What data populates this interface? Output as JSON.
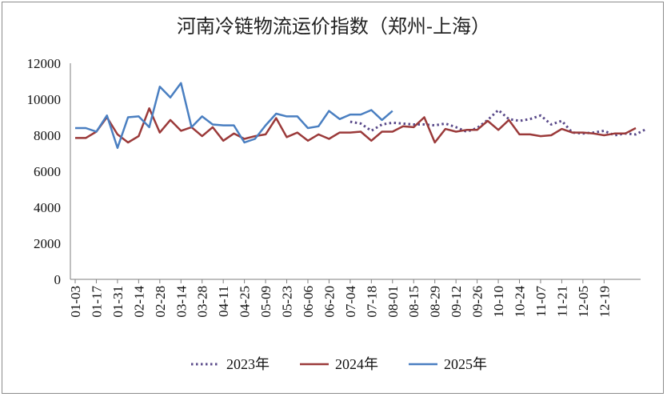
{
  "chart_data": {
    "type": "line",
    "title": "河南冷链物流运价指数（郑州-上海）",
    "xlabel": "",
    "ylabel": "",
    "ylim": [
      0,
      12000
    ],
    "yticks": [
      0,
      2000,
      4000,
      6000,
      8000,
      10000,
      12000
    ],
    "grid": false,
    "legend_position": "bottom",
    "xtick_labels": [
      "01-03",
      "01-17",
      "01-31",
      "02-14",
      "02-28",
      "03-14",
      "03-28",
      "04-11",
      "04-25",
      "05-09",
      "05-23",
      "06-06",
      "06-20",
      "07-04",
      "07-18",
      "08-01",
      "08-15",
      "08-29",
      "09-12",
      "09-26",
      "10-10",
      "10-24",
      "11-07",
      "11-21",
      "12-05",
      "12-19"
    ],
    "series": [
      {
        "name": "2023年",
        "color": "#5a4a8a",
        "style": "dotted",
        "x_start": 26,
        "values": [
          8750,
          8650,
          8250,
          8600,
          8700,
          8650,
          8600,
          8600,
          8550,
          8650,
          8450,
          8200,
          8400,
          8850,
          9400,
          8900,
          8800,
          8900,
          9100,
          8600,
          8800,
          8150,
          8100,
          8150,
          8250,
          8000,
          8100,
          8050,
          8350
        ]
      },
      {
        "name": "2024年",
        "color": "#9b3a3a",
        "style": "solid",
        "x_start": 0,
        "values": [
          7850,
          7850,
          8200,
          9000,
          8050,
          7600,
          7950,
          9500,
          8150,
          8850,
          8250,
          8450,
          7950,
          8450,
          7700,
          8100,
          7800,
          7950,
          8050,
          8950,
          7900,
          8150,
          7700,
          8050,
          7800,
          8150,
          8150,
          8200,
          7700,
          8200,
          8200,
          8500,
          8450,
          9000,
          7600,
          8350,
          8200,
          8300,
          8300,
          8800,
          8300,
          8850,
          8050,
          8050,
          7950,
          8000,
          8350,
          8150,
          8150,
          8100,
          8000,
          8100,
          8100,
          8400
        ]
      },
      {
        "name": "2025年",
        "color": "#4a7fc1",
        "style": "solid",
        "x_start": 0,
        "values": [
          8400,
          8400,
          8200,
          9100,
          7300,
          9000,
          9050,
          8450,
          10700,
          10100,
          10900,
          8450,
          9050,
          8600,
          8550,
          8550,
          7600,
          7800,
          8550,
          9200,
          9050,
          9050,
          8400,
          8500,
          9350,
          8900,
          9150,
          9150,
          9400,
          8850,
          9350
        ]
      }
    ]
  }
}
